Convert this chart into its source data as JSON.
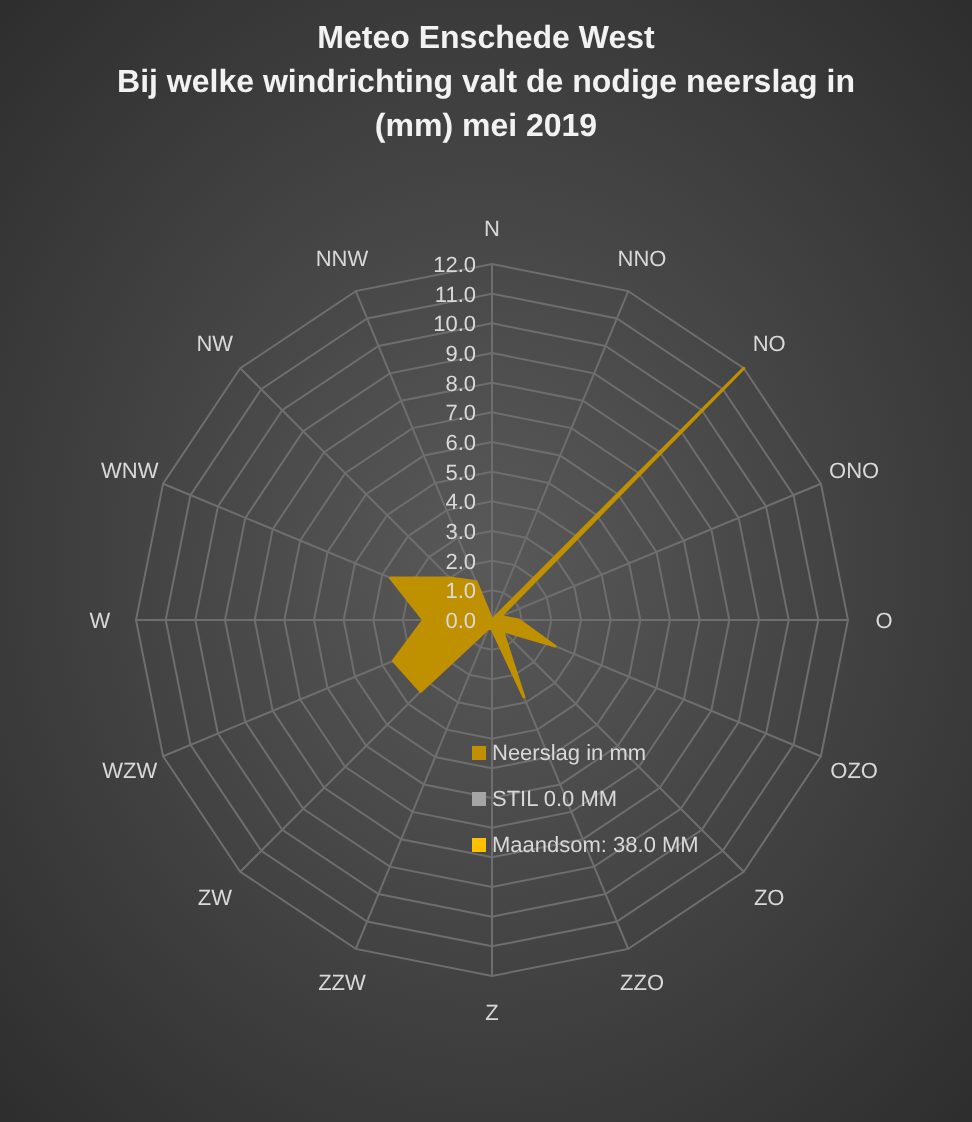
{
  "chart_data": {
    "type": "radar",
    "title": "Meteo Enschede West\nBij welke windrichting valt de nodige neerslag in\n(mm) mei 2019",
    "categories": [
      "N",
      "NNO",
      "NO",
      "ONO",
      "O",
      "OZO",
      "ZO",
      "ZZO",
      "Z",
      "ZZW",
      "ZW",
      "WZW",
      "W",
      "WNW",
      "NW",
      "NNW"
    ],
    "series": [
      {
        "name": "Neerslag in mm",
        "color": "#bf9000",
        "type": "area",
        "values": [
          0,
          0,
          12,
          0.3,
          0.9,
          2.3,
          0.5,
          2.8,
          0.3,
          0.3,
          3.4,
          3.6,
          2.3,
          3.7,
          2.0,
          1.4
        ]
      },
      {
        "name": "STIL 0.0 MM",
        "color": "#a5a5a5",
        "values": [
          null,
          null,
          null,
          null,
          null,
          null,
          null,
          null,
          null,
          null,
          null,
          null,
          null,
          null,
          null,
          null
        ]
      },
      {
        "name": "Maandsom: 38.0 MM",
        "color": "#ffc000",
        "values": [
          null,
          null,
          null,
          null,
          null,
          null,
          null,
          null,
          null,
          null,
          null,
          null,
          null,
          null,
          null,
          null
        ]
      }
    ],
    "ylim": [
      0,
      12
    ],
    "yticks": [
      {
        "value": 0,
        "label": "0.0"
      },
      {
        "value": 1,
        "label": "1.0"
      },
      {
        "value": 2,
        "label": "2.0"
      },
      {
        "value": 3,
        "label": "3.0"
      },
      {
        "value": 4,
        "label": "4.0"
      },
      {
        "value": 5,
        "label": "5.0"
      },
      {
        "value": 6,
        "label": "6.0"
      },
      {
        "value": 7,
        "label": "7.0"
      },
      {
        "value": 8,
        "label": "8.0"
      },
      {
        "value": 9,
        "label": "9.0"
      },
      {
        "value": 10,
        "label": "10.0"
      },
      {
        "value": 11,
        "label": "11.0"
      },
      {
        "value": 12,
        "label": "12.0"
      }
    ],
    "grid": true,
    "legend": "bottom"
  }
}
